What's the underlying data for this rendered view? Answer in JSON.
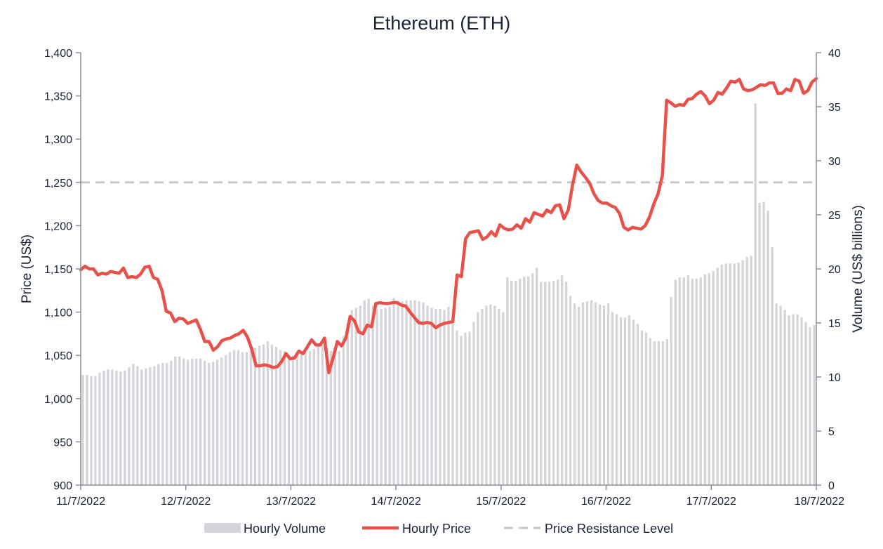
{
  "chart_data": {
    "type": "bar+line",
    "title": "Ethereum (ETH)",
    "y_left_label": "Price (US$)",
    "y_right_label": "Volume (US$ billions)",
    "y_left_range": [
      900,
      1400
    ],
    "y_left_ticks": [
      "900",
      "950",
      "1,000",
      "1,050",
      "1,100",
      "1,150",
      "1,200",
      "1,250",
      "1,300",
      "1,350",
      "1,400"
    ],
    "y_right_range": [
      0,
      40
    ],
    "y_right_ticks": [
      "0",
      "5",
      "10",
      "15",
      "20",
      "25",
      "30",
      "35",
      "40"
    ],
    "x_ticks": [
      "11/7/2022",
      "12/7/2022",
      "13/7/2022",
      "14/7/2022",
      "15/7/2022",
      "16/7/2022",
      "17/7/2022",
      "18/7/2022"
    ],
    "grid": false,
    "legend_position": "bottom",
    "legend": [
      "Hourly Volume",
      "Hourly Price",
      "Price Resistance Level"
    ],
    "colors": {
      "volume": "#d3d5d9",
      "price": "#e8504a",
      "resistance": "#c3c9ca",
      "axis": "#8a8f96",
      "text": "#1a2233"
    },
    "resistance_level": 1250,
    "series": [
      {
        "name": "Hourly Volume",
        "type": "bar",
        "axis": "right",
        "values": [
          10.2,
          10.2,
          10.1,
          10.1,
          10.4,
          10.6,
          10.7,
          10.7,
          10.6,
          10.5,
          10.6,
          10.9,
          11.2,
          11.0,
          10.7,
          10.8,
          10.9,
          11.0,
          11.2,
          11.3,
          11.3,
          11.5,
          11.9,
          11.9,
          11.7,
          11.6,
          11.7,
          11.7,
          11.7,
          11.5,
          11.3,
          11.4,
          11.6,
          11.8,
          12.0,
          12.3,
          12.5,
          12.5,
          12.3,
          12.3,
          12.5,
          12.7,
          12.9,
          13.0,
          13.3,
          13.0,
          12.8,
          12.5,
          12.4,
          12.0,
          12.0,
          12.1,
          12.2,
          12.3,
          12.4,
          12.6,
          12.8,
          13.0,
          12.7,
          12.4,
          12.3,
          12.4,
          13.8,
          15.0,
          16.2,
          16.4,
          16.6,
          17.1,
          17.2,
          16.6,
          16.3,
          16.3,
          16.4,
          16.5,
          17.3,
          17.0,
          17.0,
          17.1,
          17.1,
          17.1,
          17.0,
          16.9,
          16.6,
          16.4,
          16.3,
          16.3,
          16.2,
          16.5,
          14.9,
          14.3,
          13.8,
          14.1,
          14.2,
          15.1,
          16.0,
          16.3,
          16.6,
          16.7,
          16.6,
          16.3,
          16.0,
          19.2,
          18.9,
          18.9,
          19.1,
          19.3,
          19.3,
          19.6,
          20.1,
          18.8,
          18.8,
          18.8,
          18.9,
          19.0,
          19.4,
          18.8,
          17.5,
          16.8,
          16.5,
          16.9,
          17.0,
          17.1,
          16.9,
          16.7,
          16.6,
          16.8,
          16.0,
          15.8,
          15.5,
          15.5,
          15.7,
          15.3,
          14.9,
          14.3,
          14.1,
          13.6,
          13.3,
          13.3,
          13.3,
          13.5,
          17.4,
          19.0,
          19.2,
          19.2,
          19.4,
          19.1,
          19.1,
          19.2,
          19.5,
          19.6,
          19.8,
          20.1,
          20.4,
          20.5,
          20.5,
          20.5,
          20.6,
          20.8,
          21.1,
          21.2,
          35.3,
          26.1,
          26.2,
          25.4,
          22.0,
          16.8,
          16.6,
          16.2,
          15.7,
          15.8,
          15.8,
          15.5,
          15.1,
          14.6,
          14.8
        ]
      },
      {
        "name": "Hourly Price",
        "type": "line",
        "axis": "left",
        "values": [
          1149,
          1153,
          1150,
          1150,
          1143,
          1145,
          1144,
          1147,
          1146,
          1145,
          1151,
          1140,
          1141,
          1140,
          1144,
          1152,
          1153,
          1140,
          1138,
          1125,
          1101,
          1099,
          1089,
          1093,
          1092,
          1087,
          1089,
          1091,
          1080,
          1066,
          1066,
          1056,
          1060,
          1067,
          1069,
          1070,
          1073,
          1075,
          1079,
          1071,
          1057,
          1038,
          1038,
          1039,
          1038,
          1036,
          1037,
          1043,
          1052,
          1046,
          1047,
          1055,
          1052,
          1060,
          1068,
          1062,
          1062,
          1070,
          1030,
          1047,
          1066,
          1061,
          1070,
          1095,
          1090,
          1077,
          1075,
          1085,
          1083,
          1110,
          1111,
          1110,
          1110,
          1111,
          1111,
          1108,
          1107,
          1100,
          1094,
          1088,
          1087,
          1088,
          1087,
          1082,
          1085,
          1087,
          1088,
          1089,
          1143,
          1141,
          1185,
          1192,
          1193,
          1194,
          1184,
          1187,
          1193,
          1188,
          1201,
          1197,
          1195,
          1196,
          1201,
          1197,
          1208,
          1204,
          1215,
          1213,
          1211,
          1218,
          1215,
          1223,
          1224,
          1208,
          1218,
          1247,
          1270,
          1262,
          1256,
          1249,
          1237,
          1229,
          1226,
          1226,
          1223,
          1221,
          1214,
          1198,
          1195,
          1198,
          1197,
          1196,
          1200,
          1210,
          1225,
          1237,
          1258,
          1345,
          1342,
          1338,
          1340,
          1339,
          1346,
          1347,
          1352,
          1355,
          1350,
          1341,
          1345,
          1354,
          1352,
          1359,
          1367,
          1366,
          1369,
          1358,
          1356,
          1357,
          1360,
          1363,
          1362,
          1365,
          1365,
          1353,
          1353,
          1358,
          1356,
          1369,
          1367,
          1353,
          1356,
          1366,
          1370
        ]
      }
    ]
  }
}
